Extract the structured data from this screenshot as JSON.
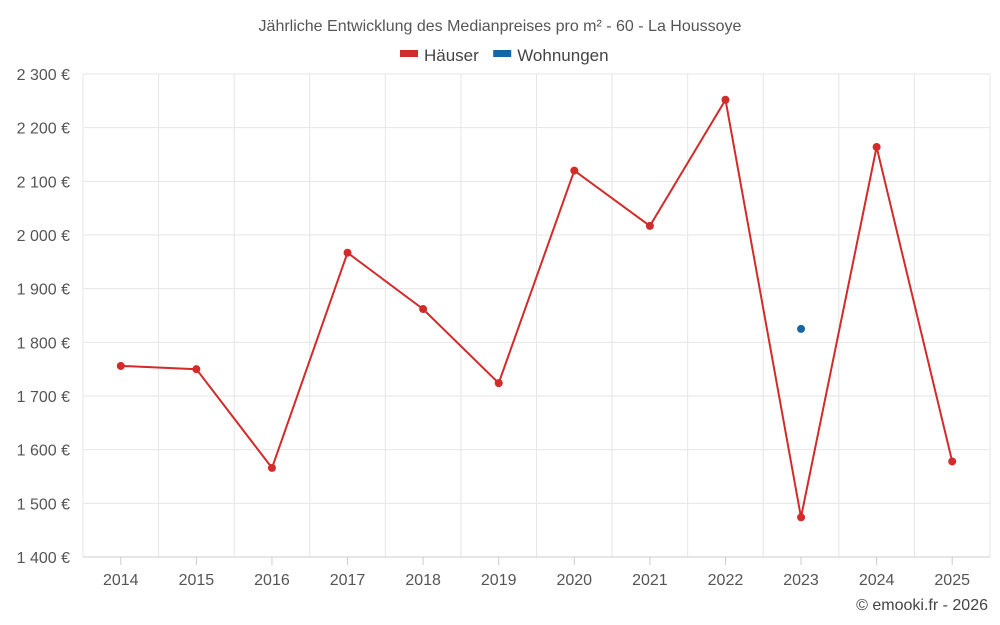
{
  "chart_data": {
    "type": "line",
    "title": "Jährliche Entwicklung des Medianpreises pro m² - 60 - La Houssoye",
    "categories": [
      "2014",
      "2015",
      "2016",
      "2017",
      "2018",
      "2019",
      "2020",
      "2021",
      "2022",
      "2023",
      "2024",
      "2025"
    ],
    "y_ticks": [
      1400,
      1500,
      1600,
      1700,
      1800,
      1900,
      2000,
      2100,
      2200,
      2300
    ],
    "y_tick_labels": [
      "1 400 €",
      "1 500 €",
      "1 600 €",
      "1 700 €",
      "1 800 €",
      "1 900 €",
      "2 000 €",
      "2 100 €",
      "2 200 €",
      "2 300 €"
    ],
    "ylim": [
      1400,
      2300
    ],
    "grid": true,
    "legend_position": "top-center",
    "series": [
      {
        "name": "Häuser",
        "color": "#d32a2a",
        "values": [
          1756,
          1750,
          1566,
          1967,
          1862,
          1724,
          2120,
          2017,
          2252,
          1474,
          2164,
          1578
        ]
      },
      {
        "name": "Wohnungen",
        "color": "#1466a5",
        "values": [
          null,
          null,
          null,
          null,
          null,
          null,
          null,
          null,
          null,
          1825,
          null,
          null
        ]
      }
    ],
    "credit": "© emooki.fr - 2026"
  }
}
